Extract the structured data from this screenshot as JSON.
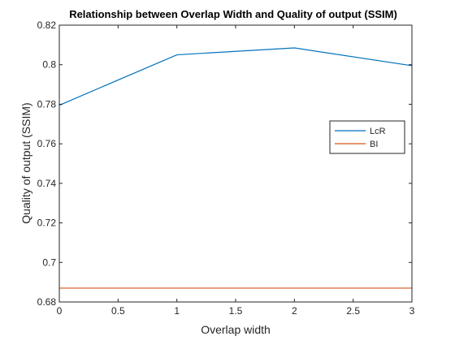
{
  "chart_data": {
    "type": "line",
    "title": "Relationship between Overlap Width and Quality of output (SSIM)",
    "xlabel": "Overlap width",
    "ylabel": "Quality of output (SSIM)",
    "xlim": [
      0,
      3
    ],
    "ylim": [
      0.68,
      0.82
    ],
    "x_ticks": [
      "0",
      "0.5",
      "1",
      "1.5",
      "2",
      "2.5",
      "3"
    ],
    "y_ticks": [
      "0.68",
      "0.7",
      "0.72",
      "0.74",
      "0.76",
      "0.78",
      "0.8",
      "0.82"
    ],
    "grid": false,
    "legend_position": "right",
    "series": [
      {
        "name": "LcR",
        "color": "#0072bd",
        "x": [
          0,
          1,
          2,
          3
        ],
        "y": [
          0.7795,
          0.805,
          0.8085,
          0.7995
        ]
      },
      {
        "name": "BI",
        "color": "#d95319",
        "x": [
          0,
          1,
          2,
          3
        ],
        "y": [
          0.687,
          0.687,
          0.687,
          0.687
        ]
      }
    ]
  }
}
